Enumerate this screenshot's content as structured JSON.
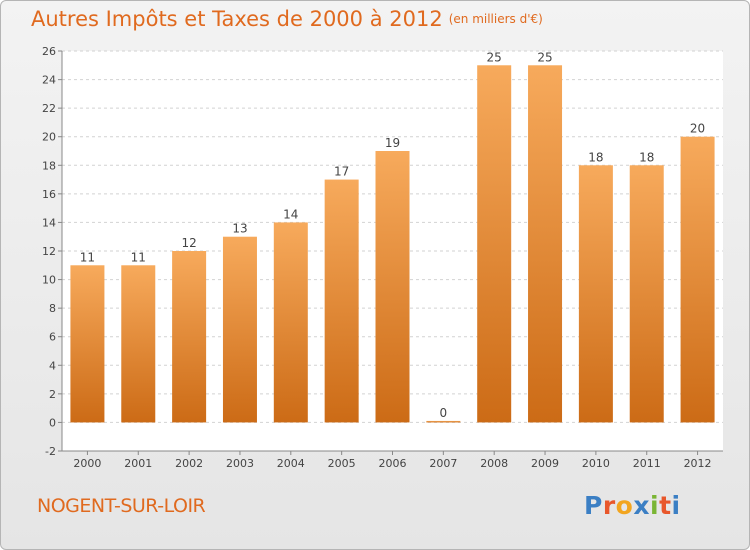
{
  "title": "Autres Impôts et Taxes de 2000 à 2012",
  "subtitle": "(en milliers d'€)",
  "commune": "NOGENT-SUR-LOIR",
  "logo": {
    "letters": [
      "P",
      "r",
      "o",
      "x",
      "i",
      "t",
      "i"
    ],
    "colors": [
      "#3b7fc4",
      "#e8572b",
      "#f2a51f",
      "#3b7fc4",
      "#7ab534",
      "#e8572b",
      "#3b7fc4"
    ]
  },
  "colors": {
    "bar_top": "#f7aa5c",
    "bar_bottom": "#cc6b16",
    "accent_text": "#e06a1f",
    "grid": "#d2d2d2",
    "plot_bg": "#ffffff"
  },
  "chart_data": {
    "type": "bar",
    "title": "Autres Impôts et Taxes de 2000 à 2012",
    "subtitle": "(en milliers d'€)",
    "xlabel": "",
    "ylabel": "",
    "categories": [
      "2000",
      "2001",
      "2002",
      "2003",
      "2004",
      "2005",
      "2006",
      "2007",
      "2008",
      "2009",
      "2010",
      "2011",
      "2012"
    ],
    "values": [
      11,
      11,
      12,
      13,
      14,
      17,
      19,
      0,
      25,
      25,
      18,
      18,
      20
    ],
    "data_labels": [
      "11",
      "11",
      "12",
      "13",
      "14",
      "17",
      "19",
      "0",
      "25",
      "25",
      "18",
      "18",
      "20"
    ],
    "ylim": [
      -2,
      26
    ],
    "yticks": [
      "-2",
      "0",
      "2",
      "4",
      "6",
      "8",
      "10",
      "12",
      "14",
      "16",
      "18",
      "20",
      "22",
      "24",
      "26"
    ],
    "grid": "horizontal dashed",
    "legend": "none"
  }
}
